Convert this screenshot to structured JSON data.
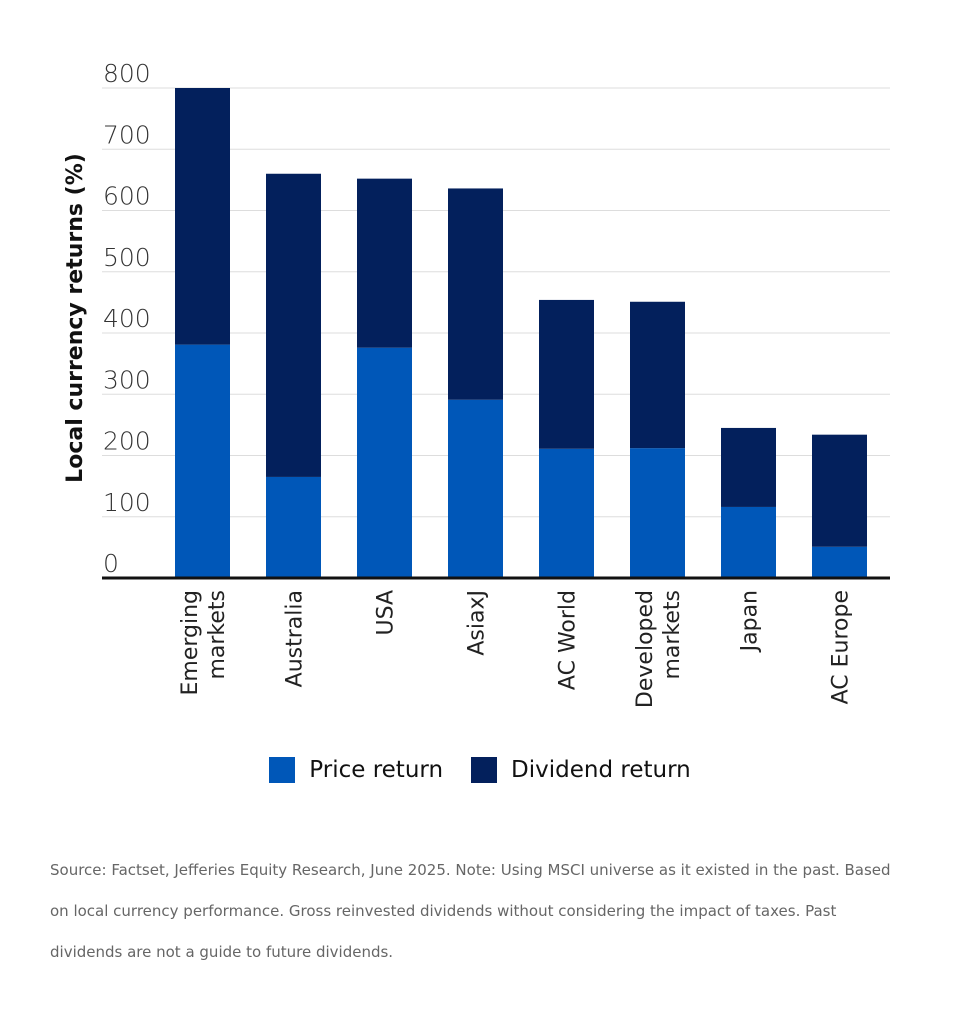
{
  "chart_data": {
    "type": "bar",
    "stacked": true,
    "title": "",
    "xlabel": "",
    "ylabel": "Local currency returns (%)",
    "ylim": [
      0,
      800
    ],
    "yticks": [
      0,
      100,
      200,
      300,
      400,
      500,
      600,
      700,
      800
    ],
    "grid": true,
    "legend_position": "bottom-center",
    "categories": [
      "Emerging markets",
      "Australia",
      "USA",
      "AsiaxJ",
      "AC World",
      "Developed markets",
      "Japan",
      "AC Europe"
    ],
    "category_lines": [
      [
        "Emerging",
        "markets"
      ],
      [
        "Australia"
      ],
      [
        "USA"
      ],
      [
        "AsiaxJ"
      ],
      [
        "AC World"
      ],
      [
        "Developed",
        "markets"
      ],
      [
        "Japan"
      ],
      [
        "AC Europe"
      ]
    ],
    "series": [
      {
        "name": "Price return",
        "color": "#0057b8",
        "values": [
          381,
          165,
          376,
          291,
          211,
          212,
          116,
          51
        ]
      },
      {
        "name": "Dividend return",
        "color": "#03205c",
        "values": [
          419,
          495,
          276,
          345,
          243,
          239,
          129,
          183
        ]
      }
    ],
    "totals": [
      800,
      660,
      652,
      636,
      454,
      451,
      245,
      234
    ]
  },
  "legend": {
    "items": [
      {
        "label": "Price return",
        "color": "#0057b8"
      },
      {
        "label": "Dividend return",
        "color": "#03205c"
      }
    ]
  },
  "source_note": "Source: Factset, Jefferies Equity Research, June 2025. Note: Using MSCI universe as it existed in the past. Based on local currency performance. Gross reinvested dividends without considering the impact of taxes. Past dividends are not a guide to future dividends."
}
